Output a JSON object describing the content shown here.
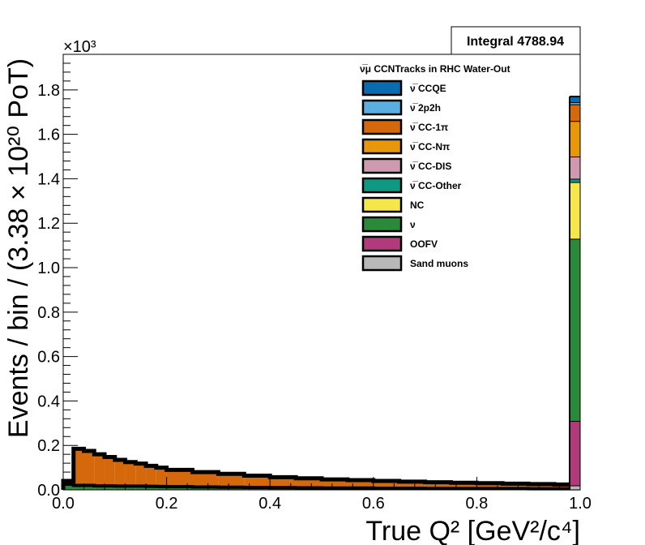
{
  "chart_data": {
    "type": "area",
    "stacked": true,
    "xlabel": "True Q² [GeV²/c⁴]",
    "ylabel": "Events / bin / (3.38 × 10²⁰ PoT)",
    "xlim": [
      0,
      1.0
    ],
    "ylim": [
      0,
      1960
    ],
    "x_ticks": [
      "0.0",
      "0.2",
      "0.4",
      "0.6",
      "0.8",
      "1.0"
    ],
    "y_ticks": [
      "0.0",
      "0.2",
      "0.4",
      "0.6",
      "0.8",
      "1.0",
      "1.2",
      "1.4",
      "1.6",
      "1.8"
    ],
    "y_multiplier": "×10³",
    "stats_box": "Integral 4788.94",
    "legend_title": "ν̅μ CCNTracks in RHC Water-Out",
    "legend_position": "top-right",
    "grid": false,
    "x_bin_edges": [
      0,
      0.02,
      0.04,
      0.06,
      0.08,
      0.1,
      0.12,
      0.14,
      0.16,
      0.18,
      0.2,
      0.25,
      0.3,
      0.35,
      0.4,
      0.45,
      0.5,
      0.55,
      0.6,
      0.65,
      0.7,
      0.75,
      0.8,
      0.85,
      0.9,
      0.95,
      1.0
    ],
    "total": [
      40,
      185,
      175,
      160,
      148,
      135,
      125,
      118,
      108,
      100,
      90,
      80,
      72,
      64,
      57,
      52,
      47,
      44,
      40,
      37,
      34,
      32,
      30,
      28,
      26,
      24
    ],
    "series": [
      {
        "name": "ν̅ CCQE",
        "color": "#0a6cb0"
      },
      {
        "name": "ν̅ 2p2h",
        "color": "#5aafe0"
      },
      {
        "name": "ν̅ CC-1π",
        "color": "#d4680a",
        "values": [
          15,
          165,
          155,
          142,
          130,
          118,
          108,
          101,
          92,
          85,
          76,
          67,
          60,
          53,
          47,
          43,
          39,
          36,
          33,
          30,
          28,
          26,
          24,
          22,
          21,
          19
        ]
      },
      {
        "name": "ν̅ CC-Nπ",
        "color": "#e8960a"
      },
      {
        "name": "ν̅ CC-DIS",
        "color": "#cf99b0"
      },
      {
        "name": "ν̅ CC-Other",
        "color": "#0e9982"
      },
      {
        "name": "NC",
        "color": "#f5e64a"
      },
      {
        "name": "ν",
        "color": "#2a8a3a",
        "values": [
          25,
          20,
          20,
          18,
          18,
          17,
          17,
          17,
          16,
          15,
          14,
          13,
          12,
          11,
          10,
          9,
          8,
          8,
          7,
          7,
          6,
          6,
          6,
          6,
          5,
          5
        ]
      },
      {
        "name": "OOFV",
        "color": "#b03a7a"
      },
      {
        "name": "Sand muons",
        "color": "#b8b8b8"
      }
    ],
    "overflow_column": {
      "x": 1.0,
      "segments": [
        {
          "series": "Sand muons",
          "from": 0,
          "to": 20
        },
        {
          "series": "OOFV",
          "from": 20,
          "to": 310
        },
        {
          "series": "ν",
          "from": 310,
          "to": 1130
        },
        {
          "series": "NC",
          "from": 1130,
          "to": 1385
        },
        {
          "series": "ν̅ CC-Other",
          "from": 1385,
          "to": 1400
        },
        {
          "series": "ν̅ CC-DIS",
          "from": 1400,
          "to": 1500
        },
        {
          "series": "ν̅ CC-Nπ",
          "from": 1500,
          "to": 1660
        },
        {
          "series": "ν̅ CC-1π",
          "from": 1660,
          "to": 1735
        },
        {
          "series": "ν̅ 2p2h",
          "from": 1735,
          "to": 1745
        },
        {
          "series": "ν̅ CCQE",
          "from": 1745,
          "to": 1770
        }
      ]
    }
  }
}
